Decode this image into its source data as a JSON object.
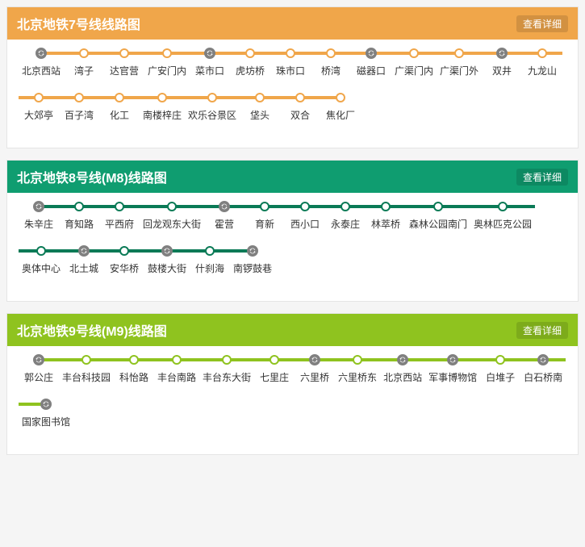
{
  "detail_button_label": "查看详细",
  "transfer_icon_color": "#808080",
  "lines": [
    {
      "id": "line7",
      "title": "北京地铁7号线线路图",
      "header_bg": "#f0a64a",
      "line_color": "#f0a64a",
      "dot_border": "#f0a64a",
      "stations": [
        {
          "name": "北京西站",
          "transfer": true
        },
        {
          "name": "湾子",
          "transfer": false
        },
        {
          "name": "达官营",
          "transfer": false
        },
        {
          "name": "广安门内",
          "transfer": false
        },
        {
          "name": "菜市口",
          "transfer": true
        },
        {
          "name": "虎坊桥",
          "transfer": false
        },
        {
          "name": "珠市口",
          "transfer": false
        },
        {
          "name": "桥湾",
          "transfer": false
        },
        {
          "name": "磁器口",
          "transfer": true
        },
        {
          "name": "广渠门内",
          "transfer": false
        },
        {
          "name": "广渠门外",
          "transfer": false
        },
        {
          "name": "双井",
          "transfer": true
        },
        {
          "name": "九龙山",
          "transfer": false
        },
        {
          "name": "大郊亭",
          "transfer": false
        },
        {
          "name": "百子湾",
          "transfer": false
        },
        {
          "name": "化工",
          "transfer": false
        },
        {
          "name": "南楼梓庄",
          "transfer": false
        },
        {
          "name": "欢乐谷景区",
          "transfer": false
        },
        {
          "name": "垡头",
          "transfer": false
        },
        {
          "name": "双合",
          "transfer": false
        },
        {
          "name": "焦化厂",
          "transfer": false
        }
      ]
    },
    {
      "id": "line8",
      "title": "北京地铁8号线(M8)线路图",
      "header_bg": "#0f9d70",
      "line_color": "#0a7a56",
      "dot_border": "#0a7a56",
      "stations": [
        {
          "name": "朱辛庄",
          "transfer": true
        },
        {
          "name": "育知路",
          "transfer": false
        },
        {
          "name": "平西府",
          "transfer": false
        },
        {
          "name": "回龙观东大街",
          "transfer": false
        },
        {
          "name": "霍营",
          "transfer": true
        },
        {
          "name": "育新",
          "transfer": false
        },
        {
          "name": "西小口",
          "transfer": false
        },
        {
          "name": "永泰庄",
          "transfer": false
        },
        {
          "name": "林萃桥",
          "transfer": false
        },
        {
          "name": "森林公园南门",
          "transfer": false
        },
        {
          "name": "奥林匹克公园",
          "transfer": false
        },
        {
          "name": "奥体中心",
          "transfer": false
        },
        {
          "name": "北土城",
          "transfer": true
        },
        {
          "name": "安华桥",
          "transfer": false
        },
        {
          "name": "鼓楼大街",
          "transfer": true
        },
        {
          "name": "什刹海",
          "transfer": false
        },
        {
          "name": "南锣鼓巷",
          "transfer": true
        }
      ]
    },
    {
      "id": "line9",
      "title": "北京地铁9号线(M9)线路图",
      "header_bg": "#8fc31f",
      "line_color": "#8fc31f",
      "dot_border": "#8fc31f",
      "stations": [
        {
          "name": "郭公庄",
          "transfer": true
        },
        {
          "name": "丰台科技园",
          "transfer": false
        },
        {
          "name": "科怡路",
          "transfer": false
        },
        {
          "name": "丰台南路",
          "transfer": false
        },
        {
          "name": "丰台东大街",
          "transfer": false
        },
        {
          "name": "七里庄",
          "transfer": false
        },
        {
          "name": "六里桥",
          "transfer": true
        },
        {
          "name": "六里桥东",
          "transfer": false
        },
        {
          "name": "北京西站",
          "transfer": true
        },
        {
          "name": "军事博物馆",
          "transfer": true
        },
        {
          "name": "白堆子",
          "transfer": false
        },
        {
          "name": "白石桥南",
          "transfer": true
        },
        {
          "name": "国家图书馆",
          "transfer": true
        }
      ]
    }
  ]
}
